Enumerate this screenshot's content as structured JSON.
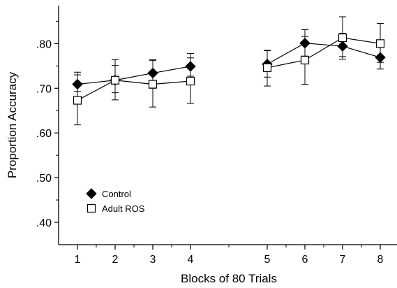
{
  "chart_data": {
    "type": "line",
    "xlabel": "Blocks of 80 Trials",
    "ylabel": "Proportion Accuracy",
    "ylim": [
      0.35,
      0.885
    ],
    "yticks": [
      {
        "value": 0.4,
        "label": ".40"
      },
      {
        "value": 0.5,
        "label": ".50"
      },
      {
        "value": 0.6,
        "label": ".60"
      },
      {
        "value": 0.7,
        "label": ".70"
      },
      {
        "value": 0.8,
        "label": ".80"
      }
    ],
    "x": [
      1,
      2,
      3,
      4,
      5,
      6,
      7,
      8
    ],
    "xtick_labels": [
      "1",
      "2",
      "3",
      "4",
      "5",
      "6",
      "7",
      "8"
    ],
    "segments": [
      [
        1,
        2,
        3,
        4
      ],
      [
        5,
        6,
        7,
        8
      ]
    ],
    "legend": {
      "position": "bottom-left"
    },
    "series": [
      {
        "name": "Control",
        "marker": "filled-diamond",
        "color": "#000000",
        "values": [
          0.709,
          0.718,
          0.734,
          0.749,
          0.754,
          0.801,
          0.794,
          0.769
        ],
        "err_low": [
          0.693,
          0.69,
          0.7,
          0.727,
          0.725,
          0.772,
          0.765,
          0.743
        ],
        "err_high": [
          0.736,
          0.751,
          0.764,
          0.778,
          0.784,
          0.831,
          0.823,
          0.795
        ]
      },
      {
        "name": "Adult ROS",
        "marker": "open-square",
        "color": "#000000",
        "values": [
          0.673,
          0.718,
          0.709,
          0.716,
          0.746,
          0.763,
          0.813,
          0.8
        ],
        "err_low": [
          0.618,
          0.674,
          0.658,
          0.666,
          0.705,
          0.709,
          0.771,
          0.758
        ],
        "err_high": [
          0.73,
          0.764,
          0.762,
          0.768,
          0.785,
          0.816,
          0.86,
          0.845
        ]
      }
    ]
  }
}
